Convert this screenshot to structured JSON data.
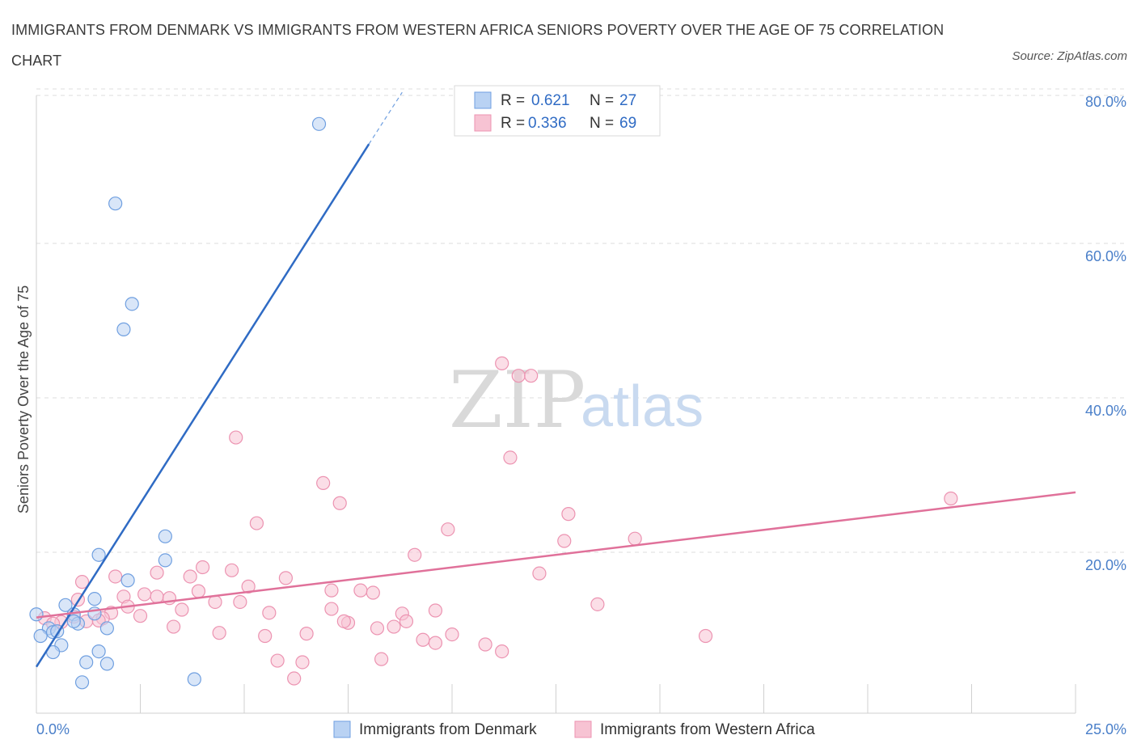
{
  "title": "IMMIGRANTS FROM DENMARK VS IMMIGRANTS FROM WESTERN AFRICA SENIORS POVERTY OVER THE AGE OF 75 CORRELATION CHART",
  "source": "Source: ZipAtlas.com",
  "watermark": {
    "zip": "ZIP",
    "atlas": "atlas"
  },
  "colors": {
    "blue": "#2f6bc4",
    "blue_fill": "#b9d2f3",
    "blue_stroke": "#6f9fe0",
    "pink": "#e0719a",
    "pink_fill": "#f7c3d3",
    "pink_stroke": "#ec93b1",
    "axis_label": "#4a7fc9",
    "grid": "#dddddd"
  },
  "legend": {
    "rows": [
      {
        "r_label": "R =",
        "r_value": "0.621",
        "n_label": "N =",
        "n_value": "27"
      },
      {
        "r_label": "R =",
        "r_value": "0.336",
        "n_label": "N =",
        "n_value": "69"
      }
    ]
  },
  "chart_data": {
    "type": "scatter",
    "title": "IMMIGRANTS FROM DENMARK VS IMMIGRANTS FROM WESTERN AFRICA SENIORS POVERTY OVER THE AGE OF 75 CORRELATION CHART",
    "xlabel": "",
    "ylabel": "Seniors Poverty Over the Age of 75",
    "xlim": [
      0,
      25
    ],
    "ylim": [
      0,
      80
    ],
    "x_tick_labels": [
      "0.0%",
      "25.0%"
    ],
    "y_ticks": [
      20,
      40,
      60,
      80
    ],
    "y_tick_labels": [
      "20.0%",
      "40.0%",
      "60.0%",
      "80.0%"
    ],
    "grid": true,
    "legend_position": "top-center",
    "series": [
      {
        "name": "Immigrants from Denmark",
        "color": "#6f9fe0",
        "R": 0.621,
        "N": 27,
        "trendline": {
          "x": [
            0,
            8.0
          ],
          "y": [
            6.0,
            73.7
          ]
        },
        "trendline_dashed": {
          "x": [
            8.0,
            8.8
          ],
          "y": [
            73.7,
            80.4
          ]
        },
        "points": [
          {
            "x": 6.8,
            "y": 76.3
          },
          {
            "x": 1.9,
            "y": 66.0
          },
          {
            "x": 2.3,
            "y": 53.0
          },
          {
            "x": 2.1,
            "y": 49.7
          },
          {
            "x": 3.1,
            "y": 22.9
          },
          {
            "x": 3.1,
            "y": 19.8
          },
          {
            "x": 1.5,
            "y": 20.5
          },
          {
            "x": 2.2,
            "y": 17.2
          },
          {
            "x": 0.7,
            "y": 14.0
          },
          {
            "x": 1.4,
            "y": 14.8
          },
          {
            "x": 1.4,
            "y": 12.9
          },
          {
            "x": 0.9,
            "y": 12.8
          },
          {
            "x": 1.0,
            "y": 11.6
          },
          {
            "x": 0.9,
            "y": 11.9
          },
          {
            "x": 1.7,
            "y": 11.0
          },
          {
            "x": 0.3,
            "y": 11.0
          },
          {
            "x": 0.4,
            "y": 10.5
          },
          {
            "x": 0.5,
            "y": 10.6
          },
          {
            "x": 0.1,
            "y": 10.0
          },
          {
            "x": 0.0,
            "y": 12.8
          },
          {
            "x": 0.6,
            "y": 8.8
          },
          {
            "x": 0.4,
            "y": 7.9
          },
          {
            "x": 1.5,
            "y": 8.0
          },
          {
            "x": 1.2,
            "y": 6.6
          },
          {
            "x": 1.7,
            "y": 6.4
          },
          {
            "x": 1.1,
            "y": 4.0
          },
          {
            "x": 3.8,
            "y": 4.4
          }
        ]
      },
      {
        "name": "Immigrants from Western Africa",
        "color": "#ec93b1",
        "R": 0.336,
        "N": 69,
        "trendline": {
          "x": [
            0,
            25
          ],
          "y": [
            12.4,
            28.6
          ]
        },
        "points": [
          {
            "x": 11.2,
            "y": 45.3
          },
          {
            "x": 11.6,
            "y": 43.7
          },
          {
            "x": 11.9,
            "y": 43.7
          },
          {
            "x": 4.8,
            "y": 35.7
          },
          {
            "x": 11.4,
            "y": 33.1
          },
          {
            "x": 6.9,
            "y": 29.8
          },
          {
            "x": 7.3,
            "y": 27.2
          },
          {
            "x": 22.0,
            "y": 27.8
          },
          {
            "x": 12.8,
            "y": 25.8
          },
          {
            "x": 5.3,
            "y": 24.6
          },
          {
            "x": 9.9,
            "y": 23.8
          },
          {
            "x": 12.7,
            "y": 22.3
          },
          {
            "x": 14.4,
            "y": 22.6
          },
          {
            "x": 9.1,
            "y": 20.5
          },
          {
            "x": 4.0,
            "y": 18.9
          },
          {
            "x": 4.7,
            "y": 18.5
          },
          {
            "x": 2.9,
            "y": 18.2
          },
          {
            "x": 1.9,
            "y": 17.7
          },
          {
            "x": 3.7,
            "y": 17.7
          },
          {
            "x": 6.0,
            "y": 17.5
          },
          {
            "x": 12.1,
            "y": 18.1
          },
          {
            "x": 1.1,
            "y": 17.0
          },
          {
            "x": 5.1,
            "y": 16.4
          },
          {
            "x": 7.1,
            "y": 15.9
          },
          {
            "x": 7.8,
            "y": 15.9
          },
          {
            "x": 8.1,
            "y": 15.6
          },
          {
            "x": 2.6,
            "y": 15.4
          },
          {
            "x": 3.9,
            "y": 15.8
          },
          {
            "x": 2.1,
            "y": 15.1
          },
          {
            "x": 2.9,
            "y": 15.1
          },
          {
            "x": 1.0,
            "y": 14.7
          },
          {
            "x": 3.2,
            "y": 14.9
          },
          {
            "x": 4.3,
            "y": 14.4
          },
          {
            "x": 4.9,
            "y": 14.4
          },
          {
            "x": 2.2,
            "y": 13.8
          },
          {
            "x": 3.5,
            "y": 13.4
          },
          {
            "x": 7.1,
            "y": 13.5
          },
          {
            "x": 9.6,
            "y": 13.3
          },
          {
            "x": 13.5,
            "y": 14.1
          },
          {
            "x": 5.6,
            "y": 13.0
          },
          {
            "x": 8.8,
            "y": 12.9
          },
          {
            "x": 1.8,
            "y": 13.0
          },
          {
            "x": 2.5,
            "y": 12.6
          },
          {
            "x": 0.9,
            "y": 12.5
          },
          {
            "x": 0.2,
            "y": 12.3
          },
          {
            "x": 1.6,
            "y": 12.3
          },
          {
            "x": 1.5,
            "y": 12.0
          },
          {
            "x": 0.6,
            "y": 11.8
          },
          {
            "x": 1.2,
            "y": 11.9
          },
          {
            "x": 0.4,
            "y": 11.6
          },
          {
            "x": 7.5,
            "y": 11.7
          },
          {
            "x": 7.4,
            "y": 11.9
          },
          {
            "x": 8.9,
            "y": 11.9
          },
          {
            "x": 3.3,
            "y": 11.2
          },
          {
            "x": 8.6,
            "y": 11.2
          },
          {
            "x": 8.2,
            "y": 11.0
          },
          {
            "x": 4.4,
            "y": 10.4
          },
          {
            "x": 6.5,
            "y": 10.3
          },
          {
            "x": 10.0,
            "y": 10.2
          },
          {
            "x": 5.5,
            "y": 10.0
          },
          {
            "x": 16.1,
            "y": 10.0
          },
          {
            "x": 9.3,
            "y": 9.5
          },
          {
            "x": 9.6,
            "y": 9.1
          },
          {
            "x": 10.8,
            "y": 8.9
          },
          {
            "x": 11.2,
            "y": 8.0
          },
          {
            "x": 8.3,
            "y": 7.0
          },
          {
            "x": 5.8,
            "y": 6.8
          },
          {
            "x": 6.4,
            "y": 6.6
          },
          {
            "x": 6.2,
            "y": 4.5
          }
        ]
      }
    ]
  }
}
